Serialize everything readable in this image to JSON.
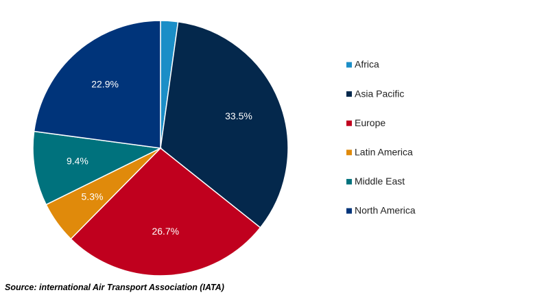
{
  "chart_data": {
    "type": "pie",
    "title": "",
    "categories": [
      "Africa",
      "Asia Pacific",
      "Europe",
      "Latin America",
      "Middle East",
      "North America"
    ],
    "values": [
      2.2,
      33.5,
      26.7,
      5.3,
      9.4,
      22.9
    ],
    "data_labels": [
      "",
      "33.5%",
      "26.7%",
      "5.3%",
      "9.4%",
      "22.9%"
    ],
    "colors": [
      "#1b8ec7",
      "#04284c",
      "#c0001e",
      "#e08a0b",
      "#00727d",
      "#00347a"
    ],
    "start_angle_deg": 0,
    "direction": "clockwise",
    "legend_position": "right"
  },
  "source": "Source: international Air Transport Association (IATA)"
}
